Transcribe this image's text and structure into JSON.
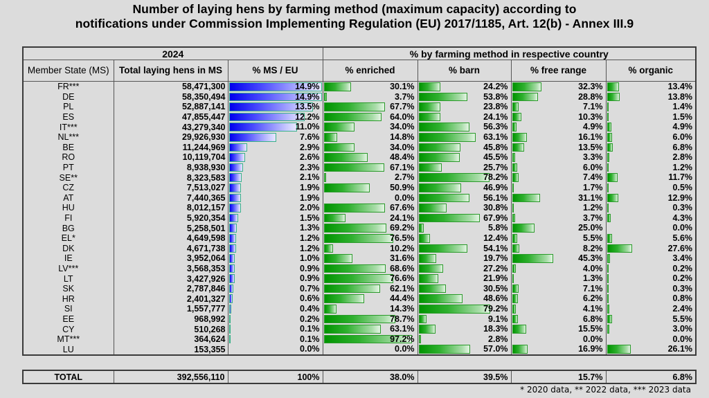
{
  "title": {
    "line1": "Number of laying hens by farming method (maximum capacity) according to",
    "line2": "notifications under Commission Implementing Regulation (EU) 2017/1185, Art. 12(b) - Annex III.9"
  },
  "header": {
    "year": "2024",
    "group": "% by farming method in respective country",
    "col_ms": "Member State (MS)",
    "col_total": "Total laying hens in MS",
    "col_pct": "% MS / EU",
    "col_enriched": "% enriched",
    "col_barn": "% barn",
    "col_free_range": "% free range",
    "col_organic": "% organic"
  },
  "total": {
    "label": "TOTAL",
    "hens": "392,556,110",
    "pct": "100%",
    "enriched": "38.0%",
    "barn": "39.5%",
    "free_range": "15.7%",
    "organic": "6.8%"
  },
  "footnote": "* 2020 data, ** 2022 data, *** 2023 data",
  "colors": {
    "ms_bar": "#0000ee",
    "method_bar": "#009400",
    "background": "#dcdcdc"
  },
  "chart_data": {
    "type": "table",
    "title": "Number of laying hens by farming method (maximum capacity) according to notifications under Commission Implementing Regulation (EU) 2017/1185, Art. 12(b) - Annex III.9",
    "year": "2024",
    "columns": [
      "Member State (MS)",
      "Total laying hens in MS",
      "% MS / EU",
      "% enriched",
      "% barn",
      "% free range",
      "% organic"
    ],
    "rows": [
      {
        "ms": "FR***",
        "hens": "58,471,300",
        "pct": 14.9,
        "enriched": 30.1,
        "barn": 24.2,
        "free_range": 32.3,
        "organic": 13.4
      },
      {
        "ms": "DE",
        "hens": "58,350,494",
        "pct": 14.9,
        "enriched": 3.7,
        "barn": 53.8,
        "free_range": 28.8,
        "organic": 13.8
      },
      {
        "ms": "PL",
        "hens": "52,887,141",
        "pct": 13.5,
        "enriched": 67.7,
        "barn": 23.8,
        "free_range": 7.1,
        "organic": 1.4
      },
      {
        "ms": "ES",
        "hens": "47,855,447",
        "pct": 12.2,
        "enriched": 64.0,
        "barn": 24.1,
        "free_range": 10.3,
        "organic": 1.5
      },
      {
        "ms": "IT***",
        "hens": "43,279,340",
        "pct": 11.0,
        "enriched": 34.0,
        "barn": 56.3,
        "free_range": 4.9,
        "organic": 4.9
      },
      {
        "ms": "NL***",
        "hens": "29,926,930",
        "pct": 7.6,
        "enriched": 14.8,
        "barn": 63.1,
        "free_range": 16.1,
        "organic": 6.0
      },
      {
        "ms": "BE",
        "hens": "11,244,969",
        "pct": 2.9,
        "enriched": 34.0,
        "barn": 45.8,
        "free_range": 13.5,
        "organic": 6.8
      },
      {
        "ms": "RO",
        "hens": "10,119,704",
        "pct": 2.6,
        "enriched": 48.4,
        "barn": 45.5,
        "free_range": 3.3,
        "organic": 2.8
      },
      {
        "ms": "PT",
        "hens": "8,938,930",
        "pct": 2.3,
        "enriched": 67.1,
        "barn": 25.7,
        "free_range": 6.0,
        "organic": 1.2
      },
      {
        "ms": "SE**",
        "hens": "8,323,583",
        "pct": 2.1,
        "enriched": 2.7,
        "barn": 78.2,
        "free_range": 7.4,
        "organic": 11.7
      },
      {
        "ms": "CZ",
        "hens": "7,513,027",
        "pct": 1.9,
        "enriched": 50.9,
        "barn": 46.9,
        "free_range": 1.7,
        "organic": 0.5
      },
      {
        "ms": "AT",
        "hens": "7,440,365",
        "pct": 1.9,
        "enriched": 0.0,
        "barn": 56.1,
        "free_range": 31.1,
        "organic": 12.9
      },
      {
        "ms": "HU",
        "hens": "8,012,157",
        "pct": 2.0,
        "enriched": 67.6,
        "barn": 30.8,
        "free_range": 1.2,
        "organic": 0.3
      },
      {
        "ms": "FI",
        "hens": "5,920,354",
        "pct": 1.5,
        "enriched": 24.1,
        "barn": 67.9,
        "free_range": 3.7,
        "organic": 4.3
      },
      {
        "ms": "BG",
        "hens": "5,258,501",
        "pct": 1.3,
        "enriched": 69.2,
        "barn": 5.8,
        "free_range": 25.0,
        "organic": 0.0
      },
      {
        "ms": "EL*",
        "hens": "4,649,598",
        "pct": 1.2,
        "enriched": 76.5,
        "barn": 12.4,
        "free_range": 5.5,
        "organic": 5.6
      },
      {
        "ms": "DK",
        "hens": "4,671,738",
        "pct": 1.2,
        "enriched": 10.2,
        "barn": 54.1,
        "free_range": 8.2,
        "organic": 27.6
      },
      {
        "ms": "IE",
        "hens": "3,952,064",
        "pct": 1.0,
        "enriched": 31.6,
        "barn": 19.7,
        "free_range": 45.3,
        "organic": 3.4
      },
      {
        "ms": "LV***",
        "hens": "3,568,353",
        "pct": 0.9,
        "enriched": 68.6,
        "barn": 27.2,
        "free_range": 4.0,
        "organic": 0.2
      },
      {
        "ms": "LT",
        "hens": "3,427,926",
        "pct": 0.9,
        "enriched": 76.6,
        "barn": 21.9,
        "free_range": 1.3,
        "organic": 0.2
      },
      {
        "ms": "SK",
        "hens": "2,787,846",
        "pct": 0.7,
        "enriched": 62.1,
        "barn": 30.5,
        "free_range": 7.1,
        "organic": 0.3
      },
      {
        "ms": "HR",
        "hens": "2,401,327",
        "pct": 0.6,
        "enriched": 44.4,
        "barn": 48.6,
        "free_range": 6.2,
        "organic": 0.8
      },
      {
        "ms": "SI",
        "hens": "1,557,777",
        "pct": 0.4,
        "enriched": 14.3,
        "barn": 79.2,
        "free_range": 4.1,
        "organic": 2.4
      },
      {
        "ms": "EE",
        "hens": "968,992",
        "pct": 0.2,
        "enriched": 78.7,
        "barn": 9.1,
        "free_range": 6.8,
        "organic": 5.5
      },
      {
        "ms": "CY",
        "hens": "510,268",
        "pct": 0.1,
        "enriched": 63.1,
        "barn": 18.3,
        "free_range": 15.5,
        "organic": 3.0
      },
      {
        "ms": "MT***",
        "hens": "364,624",
        "pct": 0.1,
        "enriched": 97.2,
        "barn": 2.8,
        "free_range": 0.0,
        "organic": 0.0
      },
      {
        "ms": "LU",
        "hens": "153,355",
        "pct": 0.0,
        "enriched": 0.0,
        "barn": 57.0,
        "free_range": 16.9,
        "organic": 26.1
      }
    ],
    "bar_scale": {
      "pct_max": 14.9,
      "method_max": 100
    }
  }
}
